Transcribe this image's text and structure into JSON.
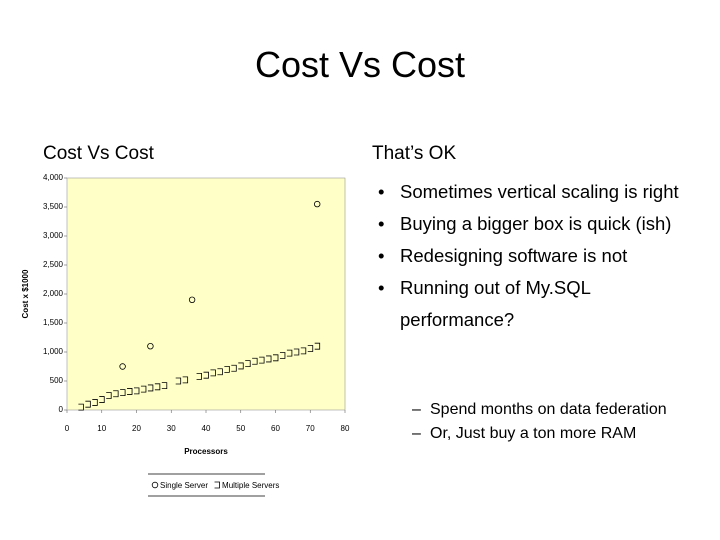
{
  "slide": {
    "title": "Cost Vs Cost",
    "left_heading": "Cost Vs Cost",
    "right_heading": "That’s OK",
    "bullets": [
      "Sometimes vertical scaling is right",
      "Buying a bigger box is quick (ish)",
      "Redesigning software is not",
      "Running out of My.SQL performance?"
    ],
    "sub_bullets": [
      "Spend months on data federation",
      "Or, Just buy a ton more RAM"
    ]
  },
  "chart_data": {
    "type": "scatter",
    "x_label": "Processors",
    "y_label": "Cost x $1000",
    "xlim": [
      0,
      80
    ],
    "xticks": [
      0,
      10,
      20,
      30,
      40,
      50,
      60,
      70,
      80
    ],
    "ylim": [
      0,
      4000
    ],
    "yticks": [
      0,
      500,
      {
        "value": 1000,
        "label": "1,000"
      },
      {
        "value": 1500,
        "label": "1,500"
      },
      {
        "value": 2000,
        "label": "2,000"
      },
      {
        "value": 2500,
        "label": "2,500"
      },
      {
        "value": 3000,
        "label": "3,000"
      },
      {
        "value": 3500,
        "label": "3,500"
      },
      {
        "value": 4000,
        "label": "4,000"
      }
    ],
    "legend": "bottom",
    "background": "#ffffc8",
    "series": [
      {
        "name": "Single Server",
        "marker": "circle",
        "color": "#000000",
        "x": [
          16,
          24,
          36,
          72
        ],
        "values": [
          750,
          1100,
          1900,
          3550
        ]
      },
      {
        "name": "Multiple Servers",
        "marker": "bracket",
        "color": "#000000",
        "x": [
          4,
          6,
          8,
          10,
          12,
          14,
          16,
          18,
          20,
          22,
          24,
          26,
          28,
          32,
          34,
          38,
          40,
          42,
          44,
          46,
          48,
          50,
          52,
          54,
          56,
          58,
          60,
          62,
          64,
          66,
          68,
          70,
          72
        ],
        "values": [
          50,
          100,
          130,
          180,
          250,
          280,
          300,
          320,
          330,
          360,
          380,
          400,
          420,
          500,
          520,
          580,
          600,
          640,
          660,
          700,
          720,
          760,
          800,
          840,
          860,
          880,
          900,
          940,
          980,
          1000,
          1020,
          1060,
          1100
        ]
      }
    ]
  }
}
